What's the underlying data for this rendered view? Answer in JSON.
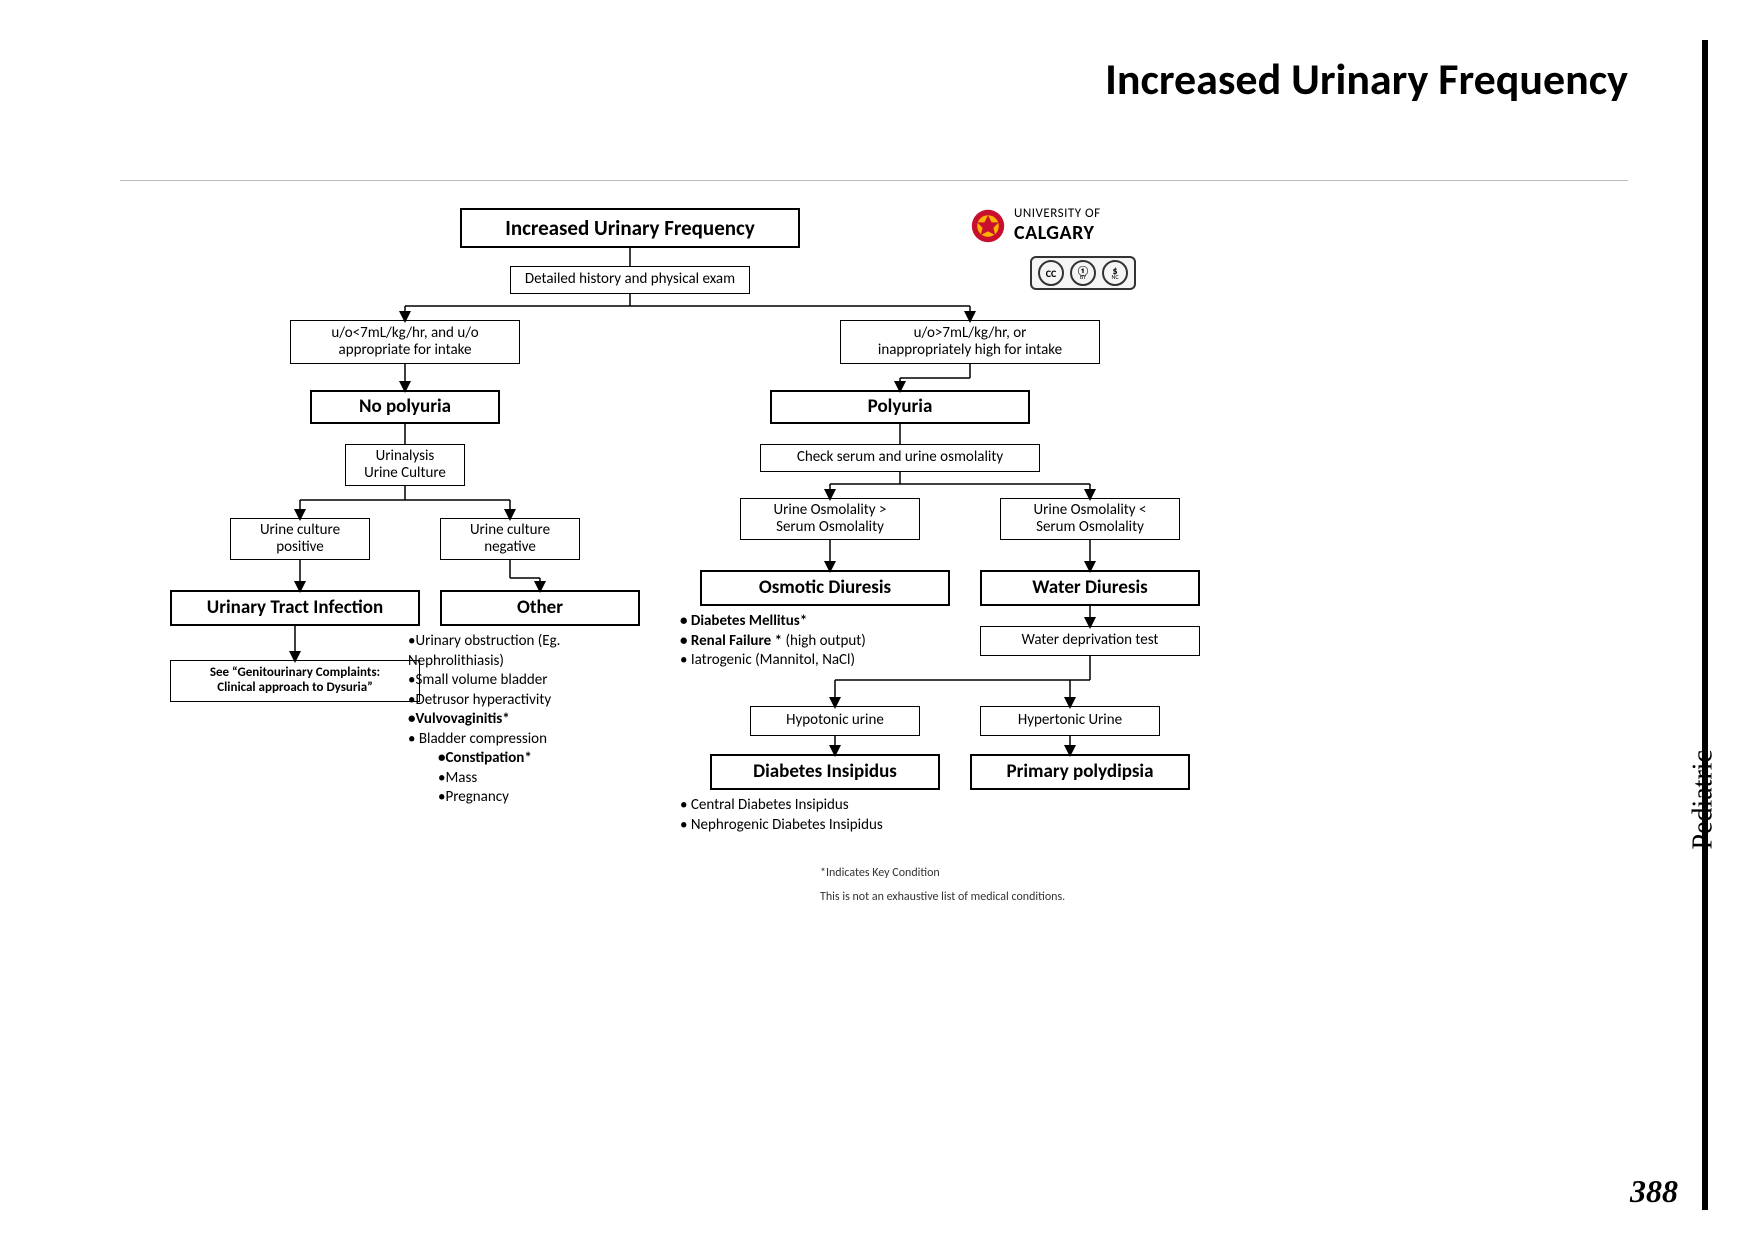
{
  "page": {
    "title": "Increased Urinary Frequency",
    "side_label": "Pediatric",
    "number": "388"
  },
  "logo": {
    "line1": "UNIVERSITY OF",
    "line2": "CALGARY"
  },
  "footnotes": {
    "f1": "*Indicates Key Condition",
    "f2": "This is not an exhaustive list of medical conditions."
  },
  "nodes": {
    "root": {
      "label": "Increased Urinary Frequency"
    },
    "hist": {
      "label": "Detailed history and physical exam"
    },
    "crit_l": {
      "label1": "u/o<7mL/kg/hr, and u/o",
      "label2": "appropriate for intake"
    },
    "crit_r": {
      "label1": "u/o>7mL/kg/hr, or",
      "label2": "inappropriately high for intake"
    },
    "nopoly": {
      "label": "No polyuria"
    },
    "poly": {
      "label": "Polyuria"
    },
    "ua": {
      "label1": "Urinalysis",
      "label2": "Urine Culture"
    },
    "check": {
      "label": "Check serum and urine osmolality"
    },
    "cpos": {
      "label1": "Urine culture",
      "label2": "positive"
    },
    "cneg": {
      "label1": "Urine culture",
      "label2": "negative"
    },
    "uo_gt": {
      "label1": "Urine Osmolality >",
      "label2": "Serum Osmolality"
    },
    "uo_lt": {
      "label1": "Urine Osmolality <",
      "label2": "Serum Osmolality"
    },
    "uti": {
      "label": "Urinary Tract Infection"
    },
    "other": {
      "label": "Other"
    },
    "osmd": {
      "label": "Osmotic Diuresis"
    },
    "waterd": {
      "label": "Water Diuresis"
    },
    "seegu": {
      "label1": "See “Genitourinary Complaints:",
      "label2": "Clinical approach to Dysuria”"
    },
    "depriv": {
      "label": "Water deprivation test"
    },
    "hypo": {
      "label": "Hypotonic urine"
    },
    "hyper": {
      "label": "Hypertonic Urine"
    },
    "di": {
      "label": "Diabetes Insipidus"
    },
    "ppoly": {
      "label": "Primary polydipsia"
    }
  },
  "lists": {
    "other_list": [
      {
        "t": "•Urinary obstruction (Eg. Nephrolithiasis)",
        "b": false
      },
      {
        "t": "•Small volume bladder",
        "b": false
      },
      {
        "t": "•Detrusor hyperactivity",
        "b": false
      },
      {
        "t": "•Vulvovaginitis*",
        "b": true
      },
      {
        "t": "• Bladder compression",
        "b": false
      },
      {
        "t": "  •Constipation*",
        "b": true
      },
      {
        "t": "  •Mass",
        "b": false
      },
      {
        "t": "  •Pregnancy",
        "b": false
      }
    ],
    "osmd_list": [
      {
        "t": "• Diabetes Mellitus*",
        "b": true
      },
      {
        "t": "• Renal Failure * (high output)",
        "b": true,
        "suffix_normal": ""
      },
      {
        "t": "• Iatrogenic (Mannitol, NaCl)",
        "b": false
      }
    ],
    "osmd_item2_prefix": "• Renal Failure * ",
    "osmd_item2_suffix": "(high output)",
    "di_list": [
      "• Central Diabetes Insipidus",
      "• Nephrogenic Diabetes Insipidus"
    ]
  },
  "layout": {
    "colors": {
      "line": "#000000",
      "bg": "#ffffff"
    },
    "line_w": 1.5,
    "arrow": {
      "w": 10,
      "h": 10
    }
  }
}
